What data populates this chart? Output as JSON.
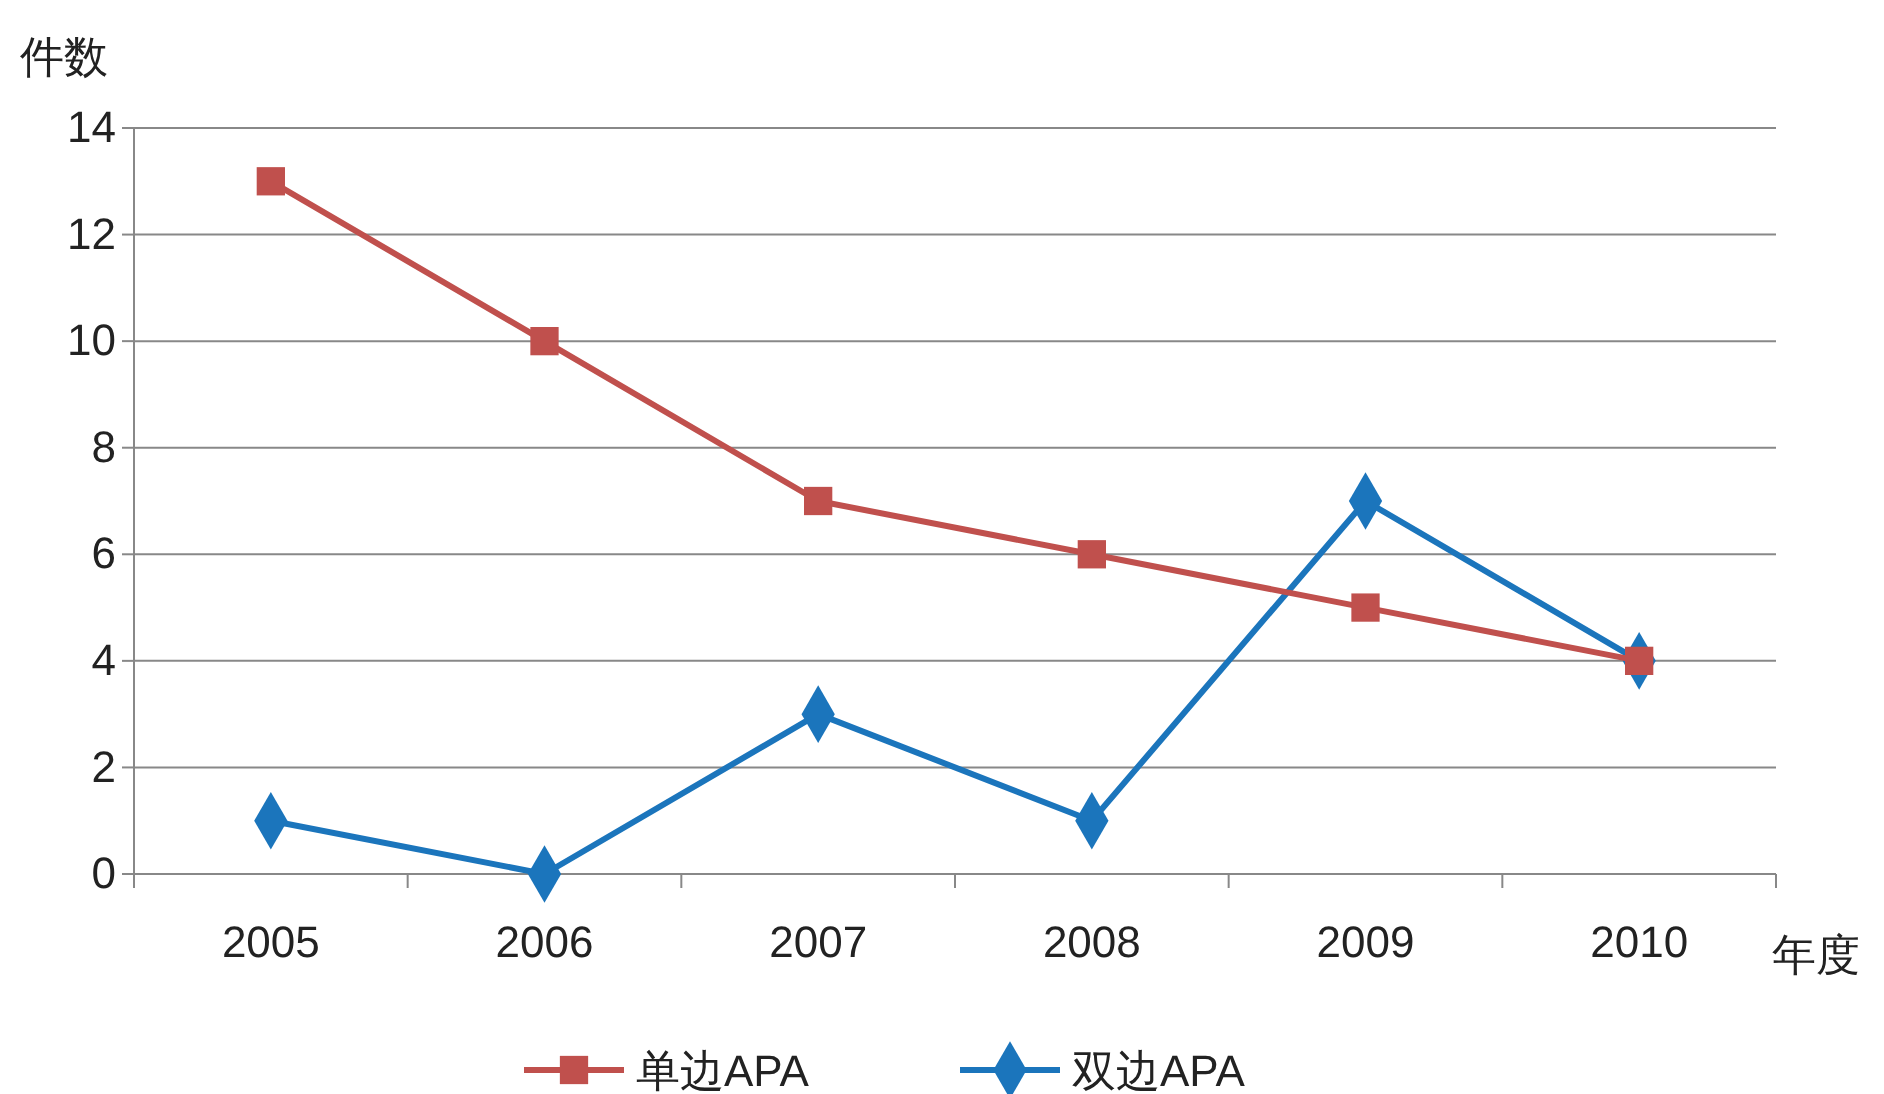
{
  "chart_data": {
    "type": "line",
    "ylabel": "件数",
    "xlabel": "年度",
    "categories": [
      "2005",
      "2006",
      "2007",
      "2008",
      "2009",
      "2010"
    ],
    "series": [
      {
        "name": "单边APA",
        "color": "#c0504d",
        "marker": "square",
        "values": [
          13,
          10,
          7,
          6,
          5,
          4
        ]
      },
      {
        "name": "双边APA",
        "color": "#1b75bc",
        "marker": "diamond",
        "values": [
          1,
          0,
          3,
          1,
          7,
          4
        ]
      }
    ],
    "ylim": [
      0,
      14
    ],
    "yticks": [
      0,
      2,
      4,
      6,
      8,
      10,
      12,
      14
    ],
    "grid": "y",
    "legend": "bottom",
    "line_style": "solid"
  }
}
